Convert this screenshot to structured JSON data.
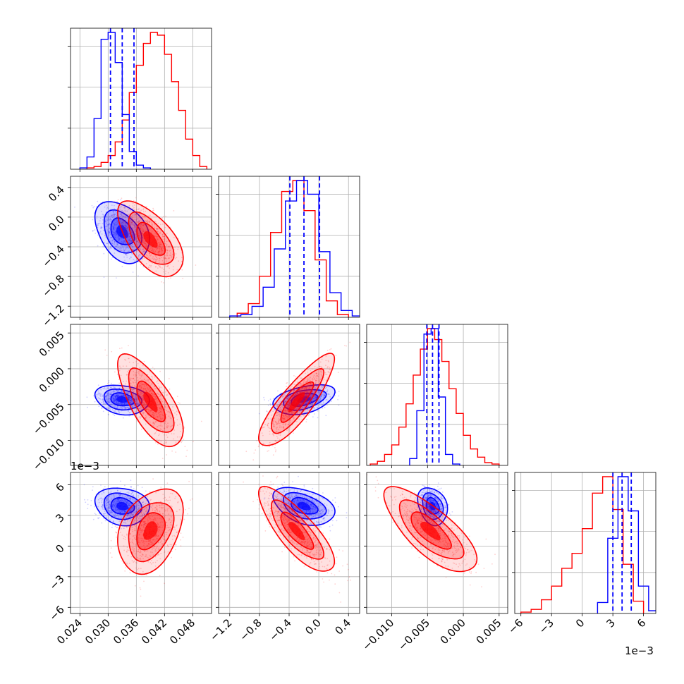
{
  "chart_data": {
    "type": "corner",
    "title": "",
    "n_params": 4,
    "grid": true,
    "series": [
      {
        "color": "#0000ff",
        "name": "",
        "quantiles_shown_as_dashed_lines": true,
        "means": [
          0.033,
          -0.2,
          -0.0043,
          0.0039
        ],
        "stds": [
          0.0025,
          0.18,
          0.0009,
          0.0008
        ],
        "correlations": [
          [
            1,
            -0.35,
            -0.2,
            -0.15
          ],
          [
            -0.35,
            1,
            0.4,
            -0.4
          ],
          [
            -0.2,
            0.4,
            1,
            -0.25
          ],
          [
            -0.15,
            -0.4,
            -0.25,
            1
          ]
        ],
        "dashed_quantiles": [
          [
            0.0305,
            0.033,
            0.0355
          ],
          [
            -0.39,
            -0.2,
            0.01
          ],
          [
            -0.0051,
            -0.0043,
            -0.0034
          ],
          [
            0.003,
            0.0039,
            0.0048
          ]
        ],
        "histograms": [
          {
            "bins": [
              0.024,
              0.0255,
              0.027,
              0.0285,
              0.03,
              0.0315,
              0.033,
              0.0345,
              0.036,
              0.0375,
              0.039
            ],
            "heights": [
              0.01,
              0.09,
              0.37,
              0.95,
              1.0,
              0.78,
              0.4,
              0.13,
              0.03,
              0.01
            ]
          },
          {
            "bins": [
              -1.2,
              -1.05,
              -0.9,
              -0.75,
              -0.6,
              -0.45,
              -0.3,
              -0.15,
              0.0,
              0.15,
              0.3,
              0.45,
              0.6
            ],
            "heights": [
              0.01,
              0.02,
              0.08,
              0.22,
              0.5,
              0.85,
              1.0,
              0.9,
              0.48,
              0.18,
              0.05,
              0.01
            ]
          },
          {
            "bins": [
              -0.0075,
              -0.0065,
              -0.0055,
              -0.0045,
              -0.0035,
              -0.0025,
              -0.0015,
              -0.0005
            ],
            "heights": [
              0.05,
              0.4,
              0.96,
              1.0,
              0.5,
              0.08,
              0.01
            ]
          },
          {
            "bins": [
              0.0015,
              0.0025,
              0.0035,
              0.0045,
              0.0055,
              0.0065,
              0.0075
            ],
            "heights": [
              0.08,
              0.55,
              1.0,
              0.75,
              0.2,
              0.02
            ]
          }
        ]
      },
      {
        "color": "#ff0000",
        "name": "",
        "quantiles_shown_as_dashed_lines": false,
        "means": [
          0.039,
          -0.3,
          -0.0046,
          0.0015
        ],
        "stds": [
          0.003,
          0.22,
          0.0028,
          0.0018
        ],
        "correlations": [
          [
            1,
            -0.6,
            -0.7,
            0.35
          ],
          [
            -0.6,
            1,
            0.85,
            -0.8
          ],
          [
            -0.7,
            0.85,
            1,
            -0.75
          ],
          [
            0.35,
            -0.8,
            -0.75,
            1
          ]
        ],
        "histograms": [
          {
            "bins": [
              0.0255,
              0.027,
              0.0285,
              0.03,
              0.0315,
              0.033,
              0.0345,
              0.036,
              0.0375,
              0.039,
              0.0405,
              0.042,
              0.0435,
              0.045,
              0.0465,
              0.048,
              0.0495,
              0.051
            ],
            "heights": [
              0.01,
              0.02,
              0.05,
              0.1,
              0.2,
              0.36,
              0.56,
              0.76,
              0.92,
              1.0,
              0.98,
              0.84,
              0.64,
              0.43,
              0.22,
              0.1,
              0.02
            ]
          },
          {
            "bins": [
              -1.1,
              -0.95,
              -0.8,
              -0.65,
              -0.5,
              -0.35,
              -0.2,
              -0.05,
              0.1,
              0.25,
              0.4
            ],
            "heights": [
              0.03,
              0.1,
              0.3,
              0.62,
              0.92,
              1.0,
              0.78,
              0.42,
              0.12,
              0.02
            ]
          },
          {
            "bins": [
              -0.013,
              -0.012,
              -0.011,
              -0.01,
              -0.009,
              -0.008,
              -0.007,
              -0.006,
              -0.005,
              -0.004,
              -0.003,
              -0.002,
              -0.001,
              0.0,
              0.001,
              0.002,
              0.003,
              0.004,
              0.005
            ],
            "heights": [
              0.01,
              0.03,
              0.08,
              0.15,
              0.28,
              0.45,
              0.66,
              0.85,
              1.0,
              0.92,
              0.76,
              0.56,
              0.38,
              0.22,
              0.12,
              0.06,
              0.02,
              0.01
            ]
          },
          {
            "bins": [
              -0.006,
              -0.005,
              -0.004,
              -0.003,
              -0.002,
              -0.001,
              0.0,
              0.001,
              0.002,
              0.003,
              0.004,
              0.005,
              0.006
            ],
            "heights": [
              0.01,
              0.03,
              0.1,
              0.2,
              0.33,
              0.44,
              0.62,
              0.88,
              1.0,
              0.76,
              0.36,
              0.09
            ]
          }
        ]
      }
    ],
    "axes": [
      {
        "range": [
          0.022,
          0.052
        ],
        "ticks": [
          0.024,
          0.03,
          0.036,
          0.042,
          0.048
        ],
        "tick_labels": [
          "0.024",
          "0.030",
          "0.036",
          "0.042",
          "0.048"
        ],
        "offset_text": ""
      },
      {
        "range": [
          -1.35,
          0.55
        ],
        "ticks": [
          -1.2,
          -0.8,
          -0.4,
          0.0,
          0.4
        ],
        "tick_labels": [
          "−1.2",
          "−0.8",
          "−0.4",
          "0.0",
          "0.4"
        ],
        "offset_text": ""
      },
      {
        "range": [
          -0.0135,
          0.0062
        ],
        "ticks": [
          -0.01,
          -0.005,
          0.0,
          0.005
        ],
        "tick_labels": [
          "−0.010",
          "−0.005",
          "0.000",
          "0.005"
        ],
        "offset_text": ""
      },
      {
        "range": [
          -0.0066,
          0.0072
        ],
        "ticks": [
          -0.006,
          -0.003,
          0.0,
          0.003,
          0.006
        ],
        "tick_labels": [
          "−6",
          "−3",
          "0",
          "3",
          "6"
        ],
        "offset_text": "1e−3"
      }
    ]
  }
}
